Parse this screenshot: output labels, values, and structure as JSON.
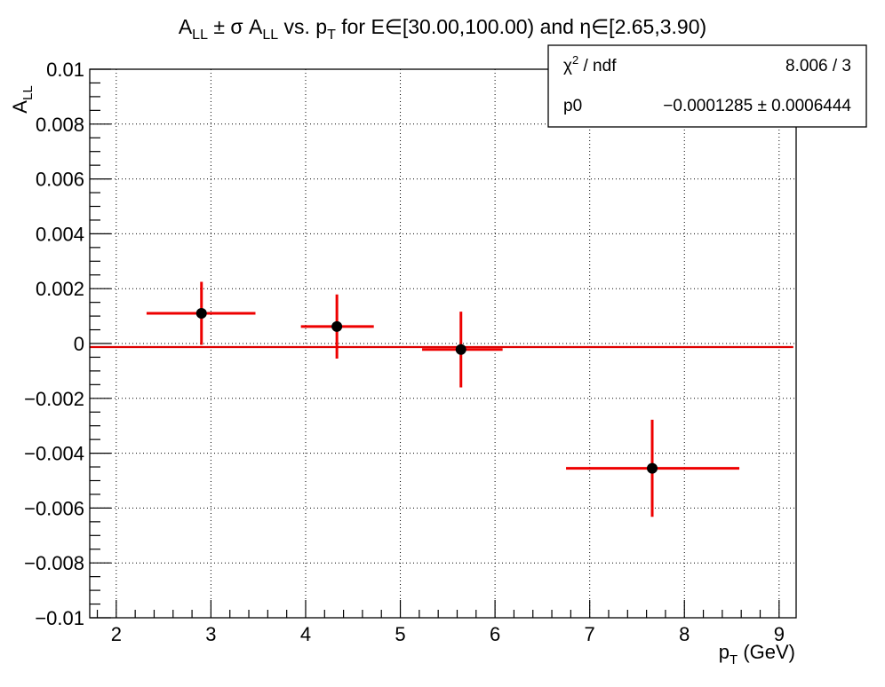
{
  "chart_data": {
    "type": "scatter",
    "title": {
      "main": "A",
      "main_sub": "LL",
      "pm": " ± σ A",
      "pm_sub": "LL",
      "mid": " vs. p",
      "mid_sub": "T",
      "tail": " for E∈[30.00,100.00) and η∈[2.65,3.90)"
    },
    "xlabel": {
      "base": "p",
      "sub": "T",
      "tail": " (GeV)"
    },
    "ylabel": {
      "base": "A",
      "sub": "LL"
    },
    "xlim": [
      1.72,
      9.18
    ],
    "ylim": [
      -0.01,
      0.01
    ],
    "grid": true,
    "x_ticks": [
      2,
      3,
      4,
      5,
      6,
      7,
      8,
      9
    ],
    "x_tick_labels": [
      "2",
      "3",
      "4",
      "5",
      "6",
      "7",
      "8",
      "9"
    ],
    "y_ticks": [
      -0.01,
      -0.008,
      -0.006,
      -0.004,
      -0.002,
      0,
      0.002,
      0.004,
      0.006,
      0.008,
      0.01
    ],
    "y_tick_labels": [
      "−0.01",
      "−0.008",
      "−0.006",
      "−0.004",
      "−0.002",
      "0",
      "0.002",
      "0.004",
      "0.006",
      "0.008",
      "0.01"
    ],
    "points": [
      {
        "x": 2.9,
        "y": 0.0011,
        "xerr_low": 2.32,
        "xerr_high": 3.47,
        "yerr": 0.00115
      },
      {
        "x": 4.33,
        "y": 0.00062,
        "xerr_low": 3.95,
        "xerr_high": 4.72,
        "yerr": 0.00117
      },
      {
        "x": 5.64,
        "y": -0.00022,
        "xerr_low": 5.23,
        "xerr_high": 6.08,
        "yerr": 0.00138
      },
      {
        "x": 7.66,
        "y": -0.00455,
        "xerr_low": 6.75,
        "xerr_high": 8.58,
        "yerr": 0.00177
      }
    ],
    "fit": {
      "p0": -0.0001285,
      "x_range": [
        1.72,
        9.15
      ]
    },
    "colors": {
      "error_bar": "#ee0000",
      "marker": "#000000",
      "fit_line": "#dd0000"
    },
    "stats_box": {
      "row1_label_base": "χ",
      "row1_label_sup": "2",
      "row1_label_tail": " / ndf",
      "row1_value": "8.006 / 3",
      "row2_label": "p0",
      "row2_value": "−0.0001285 ± 0.0006444"
    }
  }
}
